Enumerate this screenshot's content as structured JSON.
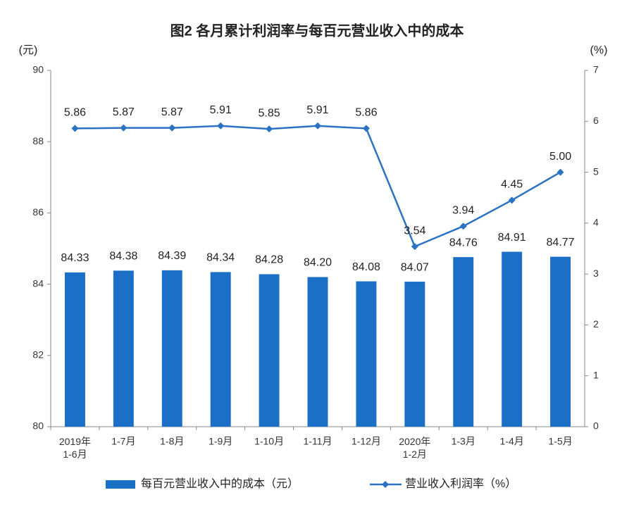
{
  "chart_data": {
    "type": "bar-line",
    "title": "图2 各月累计利润率与每百元营业收入中的成本",
    "y_unit": "(元)",
    "y2_unit": "(%)",
    "categories": [
      "2019年\n1-6月",
      "1-7月",
      "1-8月",
      "1-9月",
      "1-10月",
      "1-11月",
      "1-12月",
      "2020年\n1-2月",
      "1-3月",
      "1-4月",
      "1-5月"
    ],
    "series": [
      {
        "name": "每百元营业收入中的成本（元）",
        "type": "bar",
        "color": "#1c6fc6",
        "values": [
          84.33,
          84.38,
          84.39,
          84.34,
          84.28,
          84.2,
          84.08,
          84.07,
          84.76,
          84.91,
          84.77
        ],
        "value_labels": [
          "84.33",
          "84.38",
          "84.39",
          "84.34",
          "84.28",
          "84.20",
          "84.08",
          "84.07",
          "84.76",
          "84.91",
          "84.77"
        ]
      },
      {
        "name": "营业收入利润率（%）",
        "type": "line",
        "axis": "y2",
        "color": "#2b73c2",
        "values": [
          5.86,
          5.87,
          5.87,
          5.91,
          5.85,
          5.91,
          5.86,
          3.54,
          3.94,
          4.45,
          5.0
        ],
        "value_labels": [
          "5.86",
          "5.87",
          "5.87",
          "5.91",
          "5.85",
          "5.91",
          "5.86",
          "3.54",
          "3.94",
          "4.45",
          "5.00"
        ]
      }
    ],
    "ylim": [
      80,
      90
    ],
    "yticks": [
      80,
      82,
      84,
      86,
      88,
      90
    ],
    "y2lim": [
      0,
      7
    ],
    "y2ticks": [
      0,
      1,
      2,
      3,
      4,
      5,
      6,
      7
    ],
    "legend": "bottom"
  }
}
